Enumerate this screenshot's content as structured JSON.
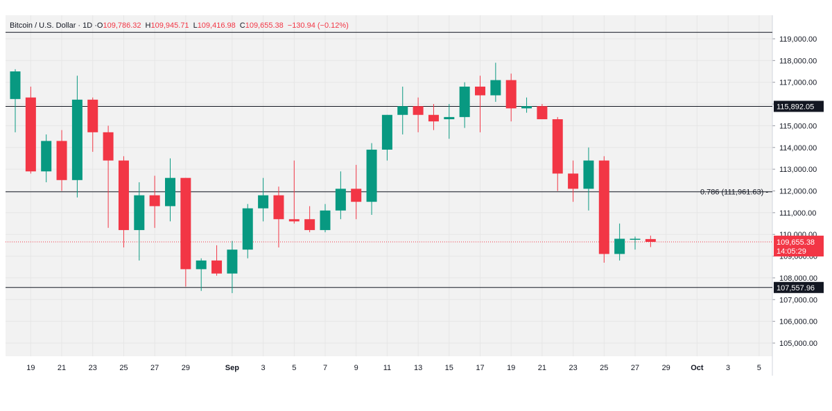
{
  "header": {
    "symbol": "Bitcoin / U.S. Dollar · 1D · ",
    "open_label": "O",
    "open": "109,786.32",
    "high_label": "H",
    "high": "109,945.71",
    "low_label": "L",
    "low": "109,416.98",
    "close_label": "C",
    "close": "109,655.38",
    "change": "−130.94 (−0.12%)"
  },
  "colors": {
    "up": "#089981",
    "down": "#f23645",
    "background": "#f2f2f2",
    "grid": "#e6e6e6",
    "level_line": "#131722",
    "price_label_bg": "#f23645",
    "level_label_bg": "#131722"
  },
  "chart_data": {
    "type": "candlestick",
    "title": "Bitcoin / U.S. Dollar · 1D",
    "ylim": [
      104000,
      119700
    ],
    "y_ticks": [
      105000,
      106000,
      107000,
      108000,
      109000,
      110000,
      111000,
      112000,
      113000,
      114000,
      115000,
      116000,
      117000,
      118000,
      119000
    ],
    "y_tick_labels": [
      "105,000.00",
      "106,000.00",
      "107,000.00",
      "108,000.00",
      "109,000.00",
      "110,000.00",
      "111,000.00",
      "112,000.00",
      "113,000.00",
      "114,000.00",
      "115,000.00",
      "116,000.00",
      "117,000.00",
      "118,000.00",
      "119,000.00"
    ],
    "x_ticks": [
      {
        "date": "2025-08-19",
        "label": "19"
      },
      {
        "date": "2025-08-21",
        "label": "21"
      },
      {
        "date": "2025-08-23",
        "label": "23"
      },
      {
        "date": "2025-08-25",
        "label": "25"
      },
      {
        "date": "2025-08-27",
        "label": "27"
      },
      {
        "date": "2025-08-29",
        "label": "29"
      },
      {
        "date": "2025-09-01",
        "label": "Sep",
        "bold": true
      },
      {
        "date": "2025-09-03",
        "label": "3"
      },
      {
        "date": "2025-09-05",
        "label": "5"
      },
      {
        "date": "2025-09-07",
        "label": "7"
      },
      {
        "date": "2025-09-09",
        "label": "9"
      },
      {
        "date": "2025-09-11",
        "label": "11"
      },
      {
        "date": "2025-09-13",
        "label": "13"
      },
      {
        "date": "2025-09-15",
        "label": "15"
      },
      {
        "date": "2025-09-17",
        "label": "17"
      },
      {
        "date": "2025-09-19",
        "label": "19"
      },
      {
        "date": "2025-09-21",
        "label": "21"
      },
      {
        "date": "2025-09-23",
        "label": "23"
      },
      {
        "date": "2025-09-25",
        "label": "25"
      },
      {
        "date": "2025-09-27",
        "label": "27"
      },
      {
        "date": "2025-09-29",
        "label": "29"
      },
      {
        "date": "2025-10-01",
        "label": "Oct",
        "bold": true
      },
      {
        "date": "2025-10-03",
        "label": "3"
      },
      {
        "date": "2025-10-05",
        "label": "5"
      }
    ],
    "x_range": [
      "2025-08-18",
      "2025-10-05"
    ],
    "candles": [
      {
        "date": "2025-08-18",
        "open": 116230,
        "high": 117600,
        "low": 114700,
        "close": 117500
      },
      {
        "date": "2025-08-19",
        "open": 116300,
        "high": 116800,
        "low": 112800,
        "close": 112900
      },
      {
        "date": "2025-08-20",
        "open": 112900,
        "high": 114600,
        "low": 112400,
        "close": 114300
      },
      {
        "date": "2025-08-21",
        "open": 114300,
        "high": 114800,
        "low": 112000,
        "close": 112500
      },
      {
        "date": "2025-08-22",
        "open": 112500,
        "high": 117300,
        "low": 111700,
        "close": 116200
      },
      {
        "date": "2025-08-23",
        "open": 116200,
        "high": 116300,
        "low": 113800,
        "close": 114700
      },
      {
        "date": "2025-08-24",
        "open": 114700,
        "high": 115000,
        "low": 110300,
        "close": 113400
      },
      {
        "date": "2025-08-25",
        "open": 113400,
        "high": 113600,
        "low": 109400,
        "close": 110200
      },
      {
        "date": "2025-08-26",
        "open": 110200,
        "high": 112400,
        "low": 108800,
        "close": 111800
      },
      {
        "date": "2025-08-27",
        "open": 111800,
        "high": 112700,
        "low": 110300,
        "close": 111300
      },
      {
        "date": "2025-08-28",
        "open": 111300,
        "high": 113500,
        "low": 110600,
        "close": 112600
      },
      {
        "date": "2025-08-29",
        "open": 112600,
        "high": 112600,
        "low": 107600,
        "close": 108400
      },
      {
        "date": "2025-08-30",
        "open": 108400,
        "high": 108900,
        "low": 107400,
        "close": 108800
      },
      {
        "date": "2025-08-31",
        "open": 108800,
        "high": 109500,
        "low": 108100,
        "close": 108200
      },
      {
        "date": "2025-09-01",
        "open": 108200,
        "high": 109700,
        "low": 107300,
        "close": 109300
      },
      {
        "date": "2025-09-02",
        "open": 109300,
        "high": 111400,
        "low": 108900,
        "close": 111200
      },
      {
        "date": "2025-09-03",
        "open": 111200,
        "high": 112600,
        "low": 110600,
        "close": 111800
      },
      {
        "date": "2025-09-04",
        "open": 111800,
        "high": 112200,
        "low": 109400,
        "close": 110700
      },
      {
        "date": "2025-09-05",
        "open": 110700,
        "high": 113400,
        "low": 110500,
        "close": 110600
      },
      {
        "date": "2025-09-06",
        "open": 110700,
        "high": 111300,
        "low": 110100,
        "close": 110200
      },
      {
        "date": "2025-09-07",
        "open": 110200,
        "high": 111400,
        "low": 110100,
        "close": 111100
      },
      {
        "date": "2025-09-08",
        "open": 111100,
        "high": 112900,
        "low": 110700,
        "close": 112100
      },
      {
        "date": "2025-09-09",
        "open": 112100,
        "high": 113200,
        "low": 110700,
        "close": 111500
      },
      {
        "date": "2025-09-10",
        "open": 111500,
        "high": 114200,
        "low": 110900,
        "close": 113900
      },
      {
        "date": "2025-09-11",
        "open": 113900,
        "high": 115500,
        "low": 113400,
        "close": 115500
      },
      {
        "date": "2025-09-12",
        "open": 115500,
        "high": 116800,
        "low": 114600,
        "close": 115900
      },
      {
        "date": "2025-09-13",
        "open": 115900,
        "high": 116300,
        "low": 114700,
        "close": 115500
      },
      {
        "date": "2025-09-14",
        "open": 115500,
        "high": 116000,
        "low": 114800,
        "close": 115200
      },
      {
        "date": "2025-09-15",
        "open": 115300,
        "high": 116000,
        "low": 114400,
        "close": 115400
      },
      {
        "date": "2025-09-16",
        "open": 115400,
        "high": 117000,
        "low": 114900,
        "close": 116800
      },
      {
        "date": "2025-09-17",
        "open": 116800,
        "high": 117300,
        "low": 114700,
        "close": 116400
      },
      {
        "date": "2025-09-18",
        "open": 116400,
        "high": 117900,
        "low": 116100,
        "close": 117100
      },
      {
        "date": "2025-09-19",
        "open": 117100,
        "high": 117400,
        "low": 115200,
        "close": 115800
      },
      {
        "date": "2025-09-20",
        "open": 115800,
        "high": 116300,
        "low": 115600,
        "close": 115900
      },
      {
        "date": "2025-09-21",
        "open": 115900,
        "high": 116000,
        "low": 115300,
        "close": 115300
      },
      {
        "date": "2025-09-22",
        "open": 115300,
        "high": 115400,
        "low": 112000,
        "close": 112800
      },
      {
        "date": "2025-09-23",
        "open": 112800,
        "high": 113400,
        "low": 111500,
        "close": 112100
      },
      {
        "date": "2025-09-24",
        "open": 112100,
        "high": 114000,
        "low": 111100,
        "close": 113400
      },
      {
        "date": "2025-09-25",
        "open": 113400,
        "high": 113600,
        "low": 108700,
        "close": 109100
      },
      {
        "date": "2025-09-26",
        "open": 109100,
        "high": 110500,
        "low": 108800,
        "close": 109800
      },
      {
        "date": "2025-09-27",
        "open": 109800,
        "high": 109900,
        "low": 109300,
        "close": 109800
      },
      {
        "date": "2025-09-28",
        "open": 109786.32,
        "high": 109945.71,
        "low": 109416.98,
        "close": 109655.38
      }
    ],
    "levels": [
      {
        "price": 119300,
        "label": "",
        "style": "solid"
      },
      {
        "price": 115892.05,
        "label": "115,892.05",
        "style": "solid"
      },
      {
        "price": 111961.63,
        "label": "0.786 (111,961.63)",
        "style": "solid"
      },
      {
        "price": 107557.96,
        "label": "107,557.96",
        "style": "solid"
      }
    ],
    "current_price": {
      "value": 109655.38,
      "label": "109,655.38",
      "countdown": "14:05:29"
    }
  }
}
